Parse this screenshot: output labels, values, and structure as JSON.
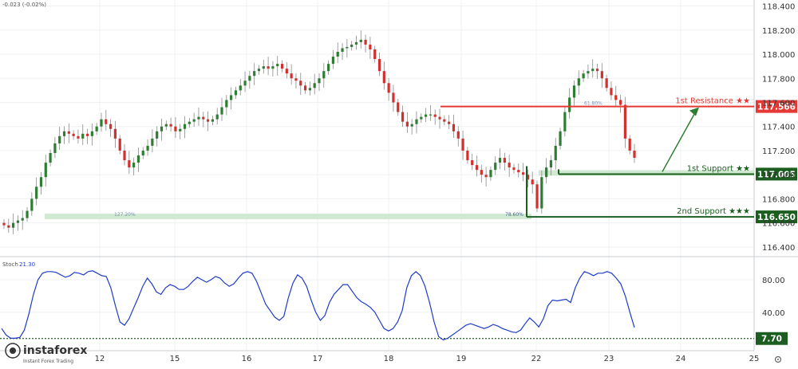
{
  "header": {
    "change_text": "-0.023 (-0.02%)"
  },
  "indicator": {
    "name": "Stoch",
    "value": "21.30"
  },
  "watermark": {
    "brand": "instaforex",
    "tagline": "Instant Forex Trading"
  },
  "colors": {
    "bull": "#2e7d32",
    "bear": "#d32f2f",
    "resistance": "#e53935",
    "support": "#1b5e20",
    "support_band": "#c8e6c9",
    "stoch_line": "#1e3cc8",
    "arrow": "#2e7d32"
  },
  "chart_data": [
    {
      "type": "candlestick",
      "y_ticks": [
        "118.400",
        "118.200",
        "118.000",
        "117.800",
        "117.600",
        "117.400",
        "117.200",
        "117.000",
        "116.800",
        "116.600",
        "116.400"
      ],
      "x_ticks": [
        "12",
        "15",
        "16",
        "17",
        "18",
        "19",
        "22",
        "23",
        "24",
        "25"
      ],
      "ylim": [
        116.32,
        118.45
      ],
      "levels": [
        {
          "name": "1st Resistance ★★",
          "price": 117.566,
          "price_label": "117.566",
          "role": "resistance"
        },
        {
          "name": "1st Support ★★",
          "price": 117.005,
          "price_label": "117.005",
          "role": "support"
        },
        {
          "name": "2nd Support ★★★",
          "price": 116.65,
          "price_label": "116.650",
          "role": "support"
        }
      ],
      "fib_labels": [
        "127.20%",
        "78.60%",
        "61.80%"
      ],
      "close_path": [
        116.58,
        116.56,
        116.6,
        116.62,
        116.64,
        116.7,
        116.8,
        116.9,
        116.98,
        117.1,
        117.18,
        117.26,
        117.32,
        117.36,
        117.34,
        117.32,
        117.3,
        117.34,
        117.32,
        117.36,
        117.4,
        117.46,
        117.42,
        117.38,
        117.3,
        117.2,
        117.12,
        117.06,
        117.1,
        117.16,
        117.2,
        117.24,
        117.3,
        117.36,
        117.4,
        117.42,
        117.4,
        117.36,
        117.38,
        117.42,
        117.44,
        117.46,
        117.48,
        117.46,
        117.44,
        117.46,
        117.5,
        117.56,
        117.62,
        117.66,
        117.7,
        117.74,
        117.78,
        117.82,
        117.86,
        117.88,
        117.9,
        117.88,
        117.9,
        117.92,
        117.88,
        117.84,
        117.8,
        117.78,
        117.74,
        117.7,
        117.72,
        117.76,
        117.8,
        117.86,
        117.92,
        117.98,
        118.02,
        118.05,
        118.06,
        118.08,
        118.1,
        118.12,
        118.08,
        118.04,
        117.96,
        117.86,
        117.76,
        117.68,
        117.6,
        117.52,
        117.44,
        117.4,
        117.42,
        117.46,
        117.48,
        117.5,
        117.5,
        117.48,
        117.46,
        117.44,
        117.42,
        117.36,
        117.3,
        117.2,
        117.12,
        117.08,
        117.04,
        117.0,
        116.98,
        117.04,
        117.1,
        117.14,
        117.1,
        117.06,
        117.04,
        117.02,
        117.0,
        116.96,
        116.92,
        116.72,
        116.98,
        117.06,
        117.12,
        117.24,
        117.36,
        117.52,
        117.64,
        117.74,
        117.8,
        117.84,
        117.86,
        117.88,
        117.86,
        117.8,
        117.72,
        117.66,
        117.62,
        117.58,
        117.3,
        117.2,
        117.14
      ]
    },
    {
      "type": "line",
      "name": "Stoch",
      "y_ticks": [
        "80.00",
        "40.00"
      ],
      "ylim": [
        0,
        100
      ],
      "level": {
        "value": 7.7,
        "label": "7.70"
      },
      "values": [
        20,
        12,
        8,
        8,
        9,
        18,
        38,
        62,
        80,
        88,
        90,
        90,
        89,
        86,
        83,
        85,
        89,
        88,
        86,
        90,
        91,
        88,
        85,
        84,
        70,
        48,
        28,
        24,
        32,
        45,
        58,
        72,
        82,
        75,
        65,
        62,
        70,
        74,
        72,
        68,
        68,
        72,
        78,
        83,
        80,
        77,
        80,
        84,
        82,
        76,
        72,
        75,
        82,
        88,
        90,
        88,
        78,
        64,
        50,
        42,
        34,
        30,
        35,
        58,
        76,
        86,
        82,
        72,
        55,
        40,
        30,
        36,
        52,
        62,
        68,
        74,
        74,
        66,
        58,
        53,
        50,
        46,
        40,
        30,
        20,
        17,
        20,
        28,
        42,
        70,
        85,
        90,
        85,
        72,
        52,
        28,
        10,
        6,
        8,
        12,
        16,
        20,
        24,
        26,
        24,
        22,
        20,
        22,
        25,
        23,
        20,
        18,
        16,
        15,
        18,
        26,
        33,
        28,
        22,
        32,
        48,
        55,
        54,
        55,
        56,
        52,
        70,
        82,
        90,
        88,
        85,
        88,
        88,
        90,
        88,
        82,
        75,
        60,
        40,
        21.3
      ]
    }
  ]
}
